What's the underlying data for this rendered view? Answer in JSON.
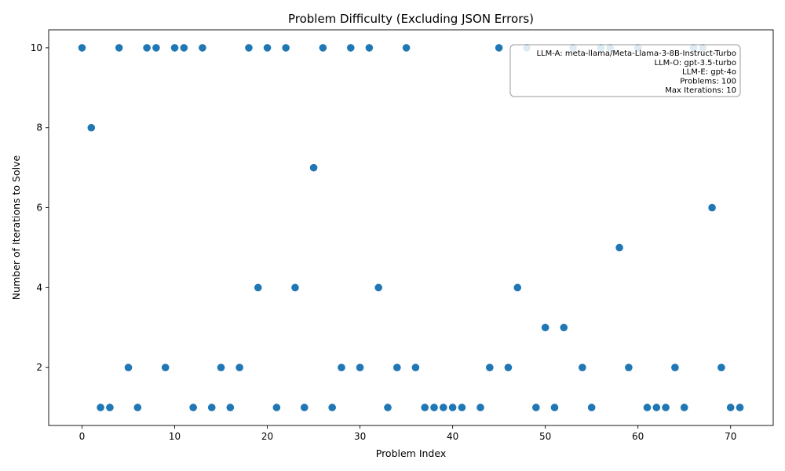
{
  "chart_data": {
    "type": "scatter",
    "title": "Problem Difficulty (Excluding JSON Errors)",
    "xlabel": "Problem Index",
    "ylabel": "Number of Iterations to Solve",
    "xlim": [
      -3.6,
      74.6
    ],
    "ylim": [
      0.55,
      10.45
    ],
    "xticks": [
      0,
      10,
      20,
      30,
      40,
      50,
      60,
      70
    ],
    "yticks": [
      2,
      4,
      6,
      8,
      10
    ],
    "grid": false,
    "marker_color": "#1f77b4",
    "x": [
      0,
      1,
      2,
      3,
      4,
      5,
      6,
      7,
      8,
      9,
      10,
      11,
      12,
      13,
      14,
      15,
      16,
      17,
      18,
      19,
      20,
      21,
      22,
      23,
      24,
      25,
      26,
      27,
      28,
      29,
      30,
      31,
      32,
      33,
      34,
      35,
      36,
      37,
      38,
      39,
      40,
      41,
      43,
      44,
      45,
      46,
      47,
      48,
      49,
      50,
      51,
      52,
      53,
      54,
      55,
      56,
      57,
      58,
      59,
      60,
      61,
      62,
      63,
      64,
      65,
      66,
      67,
      68,
      69,
      70,
      71
    ],
    "y": [
      10,
      8,
      1,
      1,
      10,
      2,
      1,
      10,
      10,
      2,
      10,
      10,
      1,
      10,
      1,
      2,
      1,
      2,
      10,
      4,
      10,
      1,
      10,
      4,
      1,
      7,
      10,
      1,
      2,
      10,
      2,
      10,
      4,
      1,
      2,
      10,
      2,
      1,
      1,
      1,
      1,
      1,
      1,
      2,
      10,
      2,
      4,
      10,
      1,
      3,
      1,
      3,
      10,
      2,
      1,
      10,
      10,
      5,
      2,
      10,
      1,
      1,
      1,
      2,
      1,
      10,
      10,
      6,
      2,
      1,
      1
    ],
    "annotation_lines": [
      "LLM-A: meta-llama/Meta-Llama-3-8B-Instruct-Turbo",
      "LLM-O: gpt-3.5-turbo",
      "LLM-E: gpt-4o",
      "Problems: 100",
      "Max Iterations: 10"
    ],
    "annotation_placement": "top-right"
  }
}
